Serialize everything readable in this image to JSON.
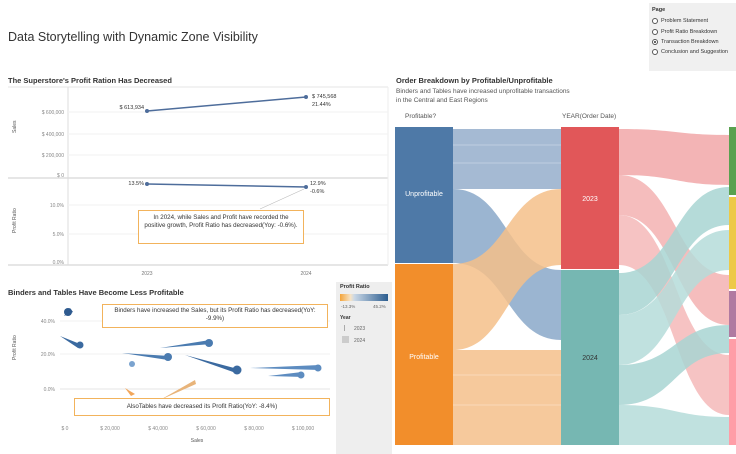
{
  "main_title": "Data Storytelling with Dynamic Zone Visibility",
  "page_selector": {
    "header": "Page",
    "options": [
      "Problem Statement",
      "Profit Ratio Breakdown",
      "Transaction Breakdown",
      "Conclusion and Suggestion"
    ],
    "selected_index": 2
  },
  "top_left": {
    "title": "The Superstore's Profit Ration Has Decreased",
    "sales_axis_label": "Sales",
    "sales_ticks": [
      "$ 600,000",
      "$ 400,000",
      "$ 200,000",
      "$ 0"
    ],
    "sales_points": [
      {
        "label": "$ 613,934"
      },
      {
        "label": "$ 745,568",
        "sub": "21.44%"
      }
    ],
    "profit_axis_label": "Profit Ratio",
    "profit_ticks": [
      "10.0%",
      "5.0%",
      "0.0%"
    ],
    "profit_points": [
      {
        "label": "13.5%"
      },
      {
        "label": "12.9%",
        "sub": "-0.6%"
      }
    ],
    "years": [
      "2023",
      "2024"
    ],
    "callout": "In 2024, while Sales and Profit have recorded the positive growth, Profit Ratio has decreased(Yoy: -0.6%)."
  },
  "bottom_left": {
    "title": "Binders and Tables Have Become Less Profitable",
    "y_axis_label": "Profit Ratio",
    "y_ticks": [
      "40.0%",
      "20.0%",
      "0.0%"
    ],
    "x_axis_label": "Sales",
    "x_ticks": [
      "$ 0",
      "$ 20,000",
      "$ 40,000",
      "$ 60,000",
      "$ 80,000",
      "$ 100,000"
    ],
    "callout_top": "Binders have increased the Sales, but its Profit Ratio has decreased(YoY: -9.9%)",
    "callout_bottom": "AlsoTables have decreased its Profit Ratio(YoY: -8.4%)"
  },
  "legend": {
    "title": "Profit Ratio",
    "min": "-13.3%",
    "max": "45.2%",
    "year_title": "Year",
    "years": [
      "2023",
      "2024"
    ]
  },
  "right": {
    "title": "Order Breakdown by Profitable/Unprofitable",
    "subtitle_line1": "Binders and Tables have increased unprofitable transactions",
    "subtitle_line2": "in the Central and East Regions",
    "col1_header": "Profitable?",
    "col2_header": "YEAR(Order Date)",
    "unprofitable_label": "Unprofitable",
    "profitable_label": "Profitable",
    "year_2023": "2023",
    "year_2024": "2024"
  },
  "colors": {
    "blue": "#4e79a7",
    "orange": "#f28e2b",
    "red": "#e15759",
    "teal": "#76b7b2",
    "callout_border": "#f2b35c"
  }
}
